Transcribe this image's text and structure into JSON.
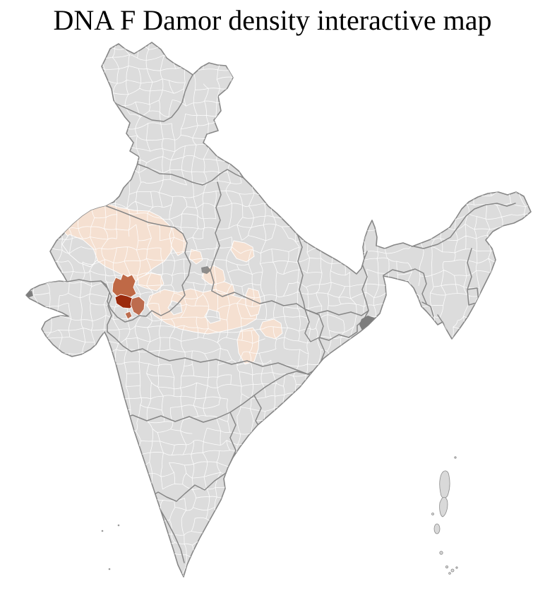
{
  "title": "DNA F Damor density interactive map",
  "map": {
    "region_label": "India district choropleth",
    "colors": {
      "no_data": "#dcdcdc",
      "low": "#f5e0d1",
      "medium": "#bf6946",
      "medium_alt": "#bd6c4e",
      "high": "#9b2a0d",
      "district_border": "#ffffff",
      "state_border": "#878787",
      "delta_patch": "#7d7d7d",
      "island": "#d9d9d9",
      "speck": "#9a9a9a"
    },
    "density_levels": [
      {
        "level": "none",
        "color": "#dcdcdc"
      },
      {
        "level": "low",
        "color": "#f5e0d1"
      },
      {
        "level": "medium",
        "color": "#bf6946"
      },
      {
        "level": "high",
        "color": "#9b2a0d"
      }
    ]
  }
}
